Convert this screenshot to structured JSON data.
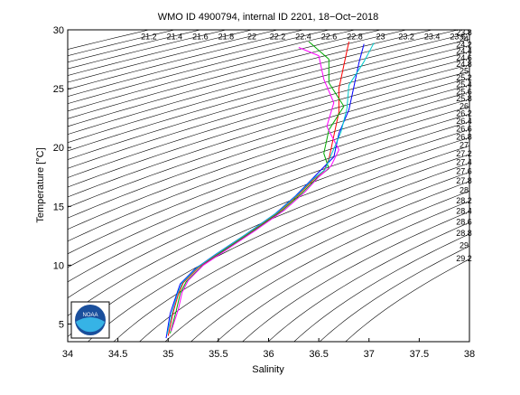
{
  "chart_data": {
    "type": "ts-diagram",
    "title": "WMO ID 4900794, internal ID 2201, 18−Oct−2018",
    "x_label": "Salinity",
    "y_label": "Temperature [°C]",
    "logo_text": "NOAA",
    "xlim": [
      34,
      38
    ],
    "ylim": [
      3.5,
      30
    ],
    "xticks": [
      34,
      34.5,
      35,
      35.5,
      36,
      36.5,
      37,
      37.5,
      38
    ],
    "yticks": [
      5,
      10,
      15,
      20,
      25,
      30
    ],
    "contour_levels": [
      21.2,
      21.4,
      21.6,
      21.8,
      22,
      22.2,
      22.4,
      22.6,
      22.8,
      23,
      23.2,
      23.4,
      23.6,
      23.8,
      24,
      24.2,
      24.4,
      24.6,
      24.8,
      25,
      25.2,
      25.4,
      25.6,
      25.8,
      26,
      26.2,
      26.4,
      26.6,
      26.8,
      27,
      27.2,
      27.4,
      27.6,
      27.8,
      28,
      28.2,
      28.4,
      28.6,
      28.8,
      29,
      29.2
    ],
    "series": [
      {
        "color": "#ff0000",
        "x": [
          35.0,
          35.05,
          35.1,
          35.15,
          35.3,
          35.5,
          35.8,
          36.1,
          36.3,
          36.45,
          36.55,
          36.6,
          36.65,
          36.7,
          36.7,
          36.75,
          36.8
        ],
        "values": [
          4,
          6,
          7.5,
          8.5,
          9.8,
          11,
          12.7,
          14.5,
          16,
          17.3,
          18,
          19,
          21,
          23,
          25,
          27,
          29
        ]
      },
      {
        "color": "#00aa00",
        "x": [
          35.02,
          35.08,
          35.12,
          35.18,
          35.33,
          35.53,
          35.83,
          36.13,
          36.33,
          36.48,
          36.6,
          36.55,
          36.6,
          36.75,
          36.6,
          36.6,
          36.4
        ],
        "values": [
          4.2,
          6.1,
          7.6,
          8.6,
          9.9,
          11.1,
          12.8,
          14.6,
          16.1,
          17.4,
          18.2,
          19.5,
          21.5,
          23.5,
          25.5,
          27.5,
          29
        ]
      },
      {
        "color": "#0000ff",
        "x": [
          34.98,
          35.02,
          35.08,
          35.12,
          35.27,
          35.47,
          35.77,
          36.07,
          36.27,
          36.42,
          36.5,
          36.65,
          36.7,
          36.8,
          36.85,
          36.9,
          36.95
        ],
        "values": [
          3.8,
          5.9,
          7.4,
          8.4,
          9.7,
          10.9,
          12.6,
          14.4,
          15.9,
          17.2,
          17.9,
          19.2,
          21.2,
          23.2,
          25.2,
          27.2,
          28.8
        ]
      },
      {
        "color": "#ff00ff",
        "x": [
          35.03,
          35.1,
          35.14,
          35.2,
          35.35,
          35.56,
          35.86,
          36.16,
          36.36,
          36.5,
          36.62,
          36.7,
          36.58,
          36.65,
          36.55,
          36.5,
          36.3
        ],
        "values": [
          4.4,
          6.2,
          7.7,
          8.7,
          10,
          11.2,
          12.9,
          14.7,
          16.2,
          17.5,
          18.4,
          19.8,
          21.8,
          23.8,
          25.8,
          27.8,
          28.5
        ]
      },
      {
        "color": "#00cccc",
        "x": [
          34.99,
          35.04,
          35.09,
          35.14,
          35.29,
          35.49,
          35.79,
          36.09,
          36.29,
          36.44,
          36.56,
          36.62,
          36.72,
          36.78,
          36.8,
          36.95,
          37.05
        ],
        "values": [
          4.1,
          6,
          7.5,
          8.5,
          9.8,
          11,
          12.7,
          14.5,
          16,
          17.3,
          18.1,
          19.3,
          21.3,
          23.3,
          25.3,
          27.3,
          28.9
        ]
      }
    ]
  }
}
